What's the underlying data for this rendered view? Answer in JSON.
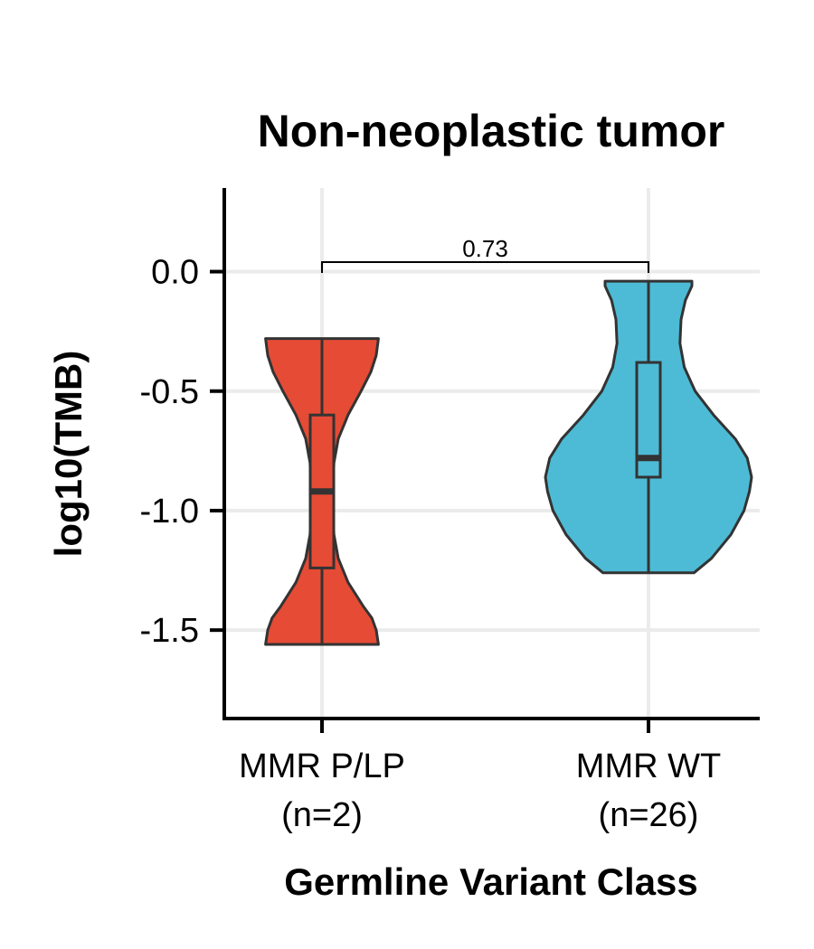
{
  "chart_data": {
    "type": "violin",
    "title": "Non-neoplastic tumor",
    "xlabel": "Germline Variant Class",
    "ylabel": "log10(TMB)",
    "ylim": [
      -1.87,
      0.35
    ],
    "yticks": [
      0.0,
      -0.5,
      -1.0,
      -1.5
    ],
    "ytick_labels": [
      "0.0",
      "-0.5",
      "-1.0",
      "-1.5"
    ],
    "grid": true,
    "categories": [
      {
        "label": "MMR P/LP",
        "n_label": "(n=2)",
        "color": "#E64B35",
        "min": -1.56,
        "q1": -1.24,
        "median": -0.92,
        "q3": -0.6,
        "max": -0.28,
        "density": [
          [
            -1.56,
            0.52
          ],
          [
            -1.5,
            0.5
          ],
          [
            -1.45,
            0.46
          ],
          [
            -1.4,
            0.38
          ],
          [
            -1.3,
            0.24
          ],
          [
            -1.2,
            0.15
          ],
          [
            -1.1,
            0.11
          ],
          [
            -1.0,
            0.1
          ],
          [
            -0.92,
            0.1
          ],
          [
            -0.8,
            0.11
          ],
          [
            -0.7,
            0.15
          ],
          [
            -0.6,
            0.24
          ],
          [
            -0.5,
            0.36
          ],
          [
            -0.42,
            0.45
          ],
          [
            -0.35,
            0.5
          ],
          [
            -0.28,
            0.52
          ]
        ]
      },
      {
        "label": "MMR WT",
        "n_label": "(n=26)",
        "color": "#4DBBD5",
        "min": -1.26,
        "q1": -0.86,
        "median": -0.78,
        "q3": -0.38,
        "max": -0.04,
        "density": [
          [
            -1.26,
            0.42
          ],
          [
            -1.2,
            0.58
          ],
          [
            -1.1,
            0.76
          ],
          [
            -1.0,
            0.88
          ],
          [
            -0.92,
            0.93
          ],
          [
            -0.86,
            0.95
          ],
          [
            -0.78,
            0.91
          ],
          [
            -0.7,
            0.8
          ],
          [
            -0.6,
            0.6
          ],
          [
            -0.5,
            0.43
          ],
          [
            -0.4,
            0.33
          ],
          [
            -0.3,
            0.29
          ],
          [
            -0.2,
            0.3
          ],
          [
            -0.12,
            0.34
          ],
          [
            -0.06,
            0.4
          ],
          [
            -0.04,
            0.4
          ]
        ]
      }
    ],
    "comparison": {
      "label": "0.73",
      "y": 0.04
    }
  }
}
